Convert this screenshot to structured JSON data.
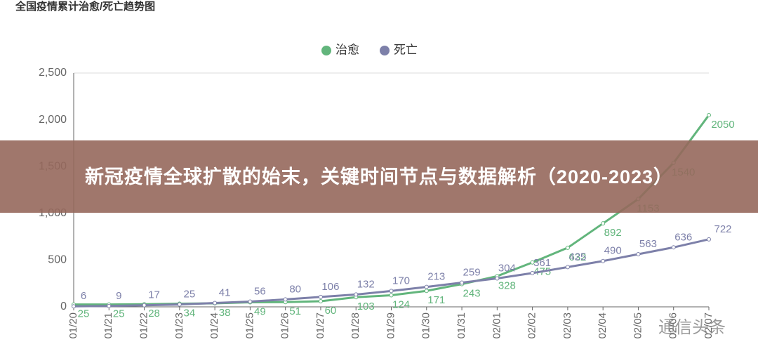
{
  "chart_data": {
    "type": "line",
    "title": "全国疫情累计治愈/死亡趋势图",
    "categories": [
      "01/20",
      "01/21",
      "01/22",
      "01/23",
      "01/24",
      "01/25",
      "01/26",
      "01/27",
      "01/28",
      "01/29",
      "01/30",
      "01/31",
      "02/01",
      "02/02",
      "02/03",
      "02/04",
      "02/05",
      "02/06",
      "02/07"
    ],
    "series": [
      {
        "name": "治愈",
        "color": "#62b57c",
        "values": [
          25,
          25,
          28,
          34,
          38,
          49,
          51,
          60,
          103,
          124,
          171,
          243,
          328,
          475,
          632,
          892,
          1153,
          1540,
          2050
        ]
      },
      {
        "name": "死亡",
        "color": "#7d80a9",
        "values": [
          6,
          9,
          17,
          25,
          41,
          56,
          80,
          106,
          132,
          170,
          213,
          259,
          304,
          361,
          425,
          490,
          563,
          636,
          722
        ]
      }
    ],
    "ylim": [
      0,
      2500
    ],
    "yticks": [
      0,
      500,
      {
        "value": 1000,
        "label": "1,000"
      },
      {
        "value": 1500,
        "label": "1,500"
      },
      {
        "value": 2000,
        "label": "2,000"
      },
      {
        "value": 2500,
        "label": "2,500"
      }
    ],
    "grid": false,
    "legend": "top"
  },
  "overlay": {
    "banner": "新冠疫情全球扩散的始末，关键时间节点与数据解析（2020-2023）",
    "watermark": "通信头条"
  }
}
